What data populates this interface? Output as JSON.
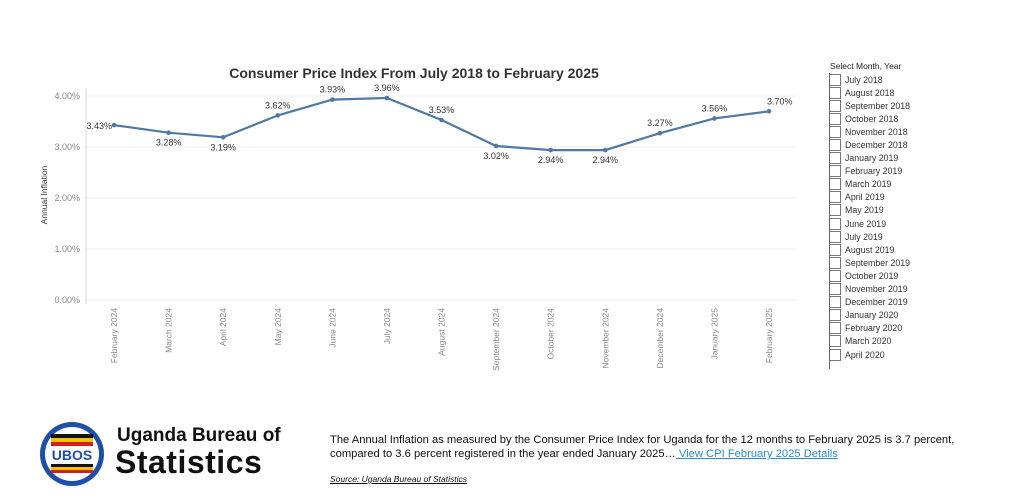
{
  "chart_data": {
    "type": "line",
    "title": "Consumer Price Index From July 2018 to February 2025",
    "ylabel": "Annual Inflation",
    "ylim": [
      0,
      4
    ],
    "y_ticks": [
      "0.00%",
      "1.00%",
      "2.00%",
      "3.00%",
      "4.00%"
    ],
    "y_tick_values": [
      0,
      1,
      2,
      3,
      4
    ],
    "categories": [
      "February 2024",
      "March 2024",
      "April 2024",
      "May 2024",
      "June 2024",
      "July 2024",
      "August 2024",
      "September 2024",
      "October 2024",
      "November 2024",
      "December 2024",
      "January 2025",
      "February 2025"
    ],
    "values": [
      3.43,
      3.28,
      3.19,
      3.62,
      3.93,
      3.96,
      3.53,
      3.02,
      2.94,
      2.94,
      3.27,
      3.56,
      3.7
    ],
    "data_labels": [
      "3.43%",
      "3.28%",
      "3.19%",
      "3.62%",
      "3.93%",
      "3.96%",
      "3.53%",
      "3.02%",
      "2.94%",
      "2.94%",
      "3.27%",
      "3.56%",
      "3.70%"
    ],
    "line_color": "#4e79a7",
    "grid": true
  },
  "filter": {
    "title": "Select Month, Year",
    "options": [
      "July 2018",
      "August 2018",
      "September 2018",
      "October 2018",
      "November 2018",
      "December 2018",
      "January 2019",
      "February 2019",
      "March 2019",
      "April 2019",
      "May 2019",
      "June 2019",
      "July 2019",
      "August 2019",
      "September 2019",
      "October 2019",
      "November 2019",
      "December 2019",
      "January 2020",
      "February 2020",
      "March 2020",
      "April 2020"
    ]
  },
  "org": {
    "line1": "Uganda Bureau of",
    "line2": "Statistics",
    "logo_text": "UBOS"
  },
  "description": {
    "text": "The Annual Inflation as measured by the Consumer Price Index for Uganda for the 12 months to February 2025 is 3.7 percent, compared to 3.6 percent registered in the year ended January 2025…",
    "link": " View CPI February 2025 Details"
  },
  "source": "Source: Uganda Bureau of Statistics"
}
